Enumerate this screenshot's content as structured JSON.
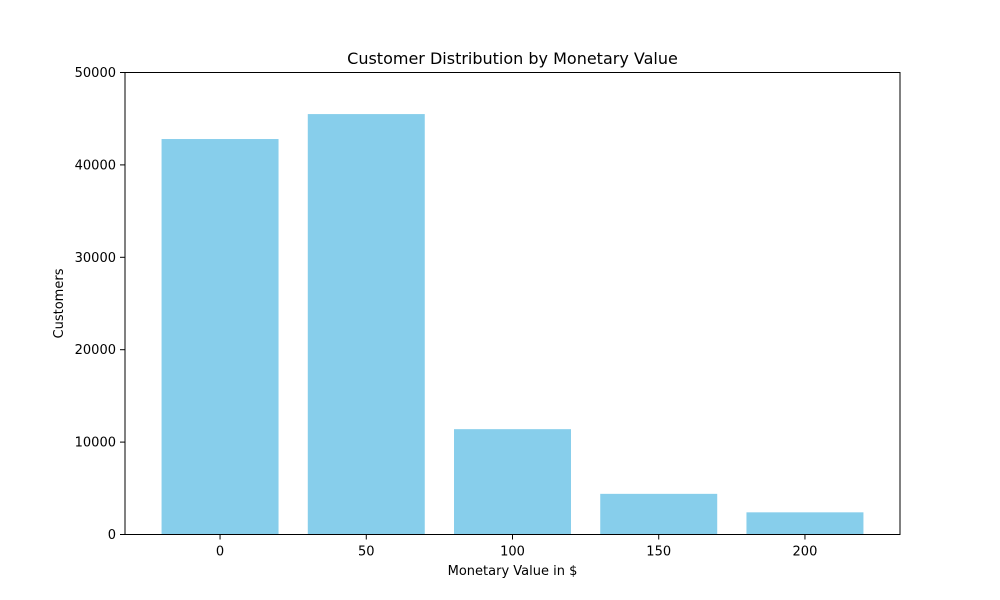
{
  "chart_data": {
    "type": "bar",
    "title": "Customer Distribution by Monetary Value",
    "xlabel": "Monetary Value in $",
    "ylabel": "Customers",
    "categories": [
      "0",
      "50",
      "100",
      "150",
      "200"
    ],
    "x": [
      0,
      50,
      100,
      150,
      200
    ],
    "values": [
      42800,
      45500,
      11400,
      4400,
      2400
    ],
    "ylim": [
      0,
      50000
    ],
    "yticks": [
      0,
      10000,
      20000,
      30000,
      40000,
      50000
    ],
    "ytick_labels": [
      "0",
      "10000",
      "20000",
      "30000",
      "40000",
      "50000"
    ],
    "xlim": [
      -32.5,
      232.5
    ],
    "bar_width": 40,
    "bar_color": "#87ceeb",
    "grid": false,
    "legend": "none"
  }
}
